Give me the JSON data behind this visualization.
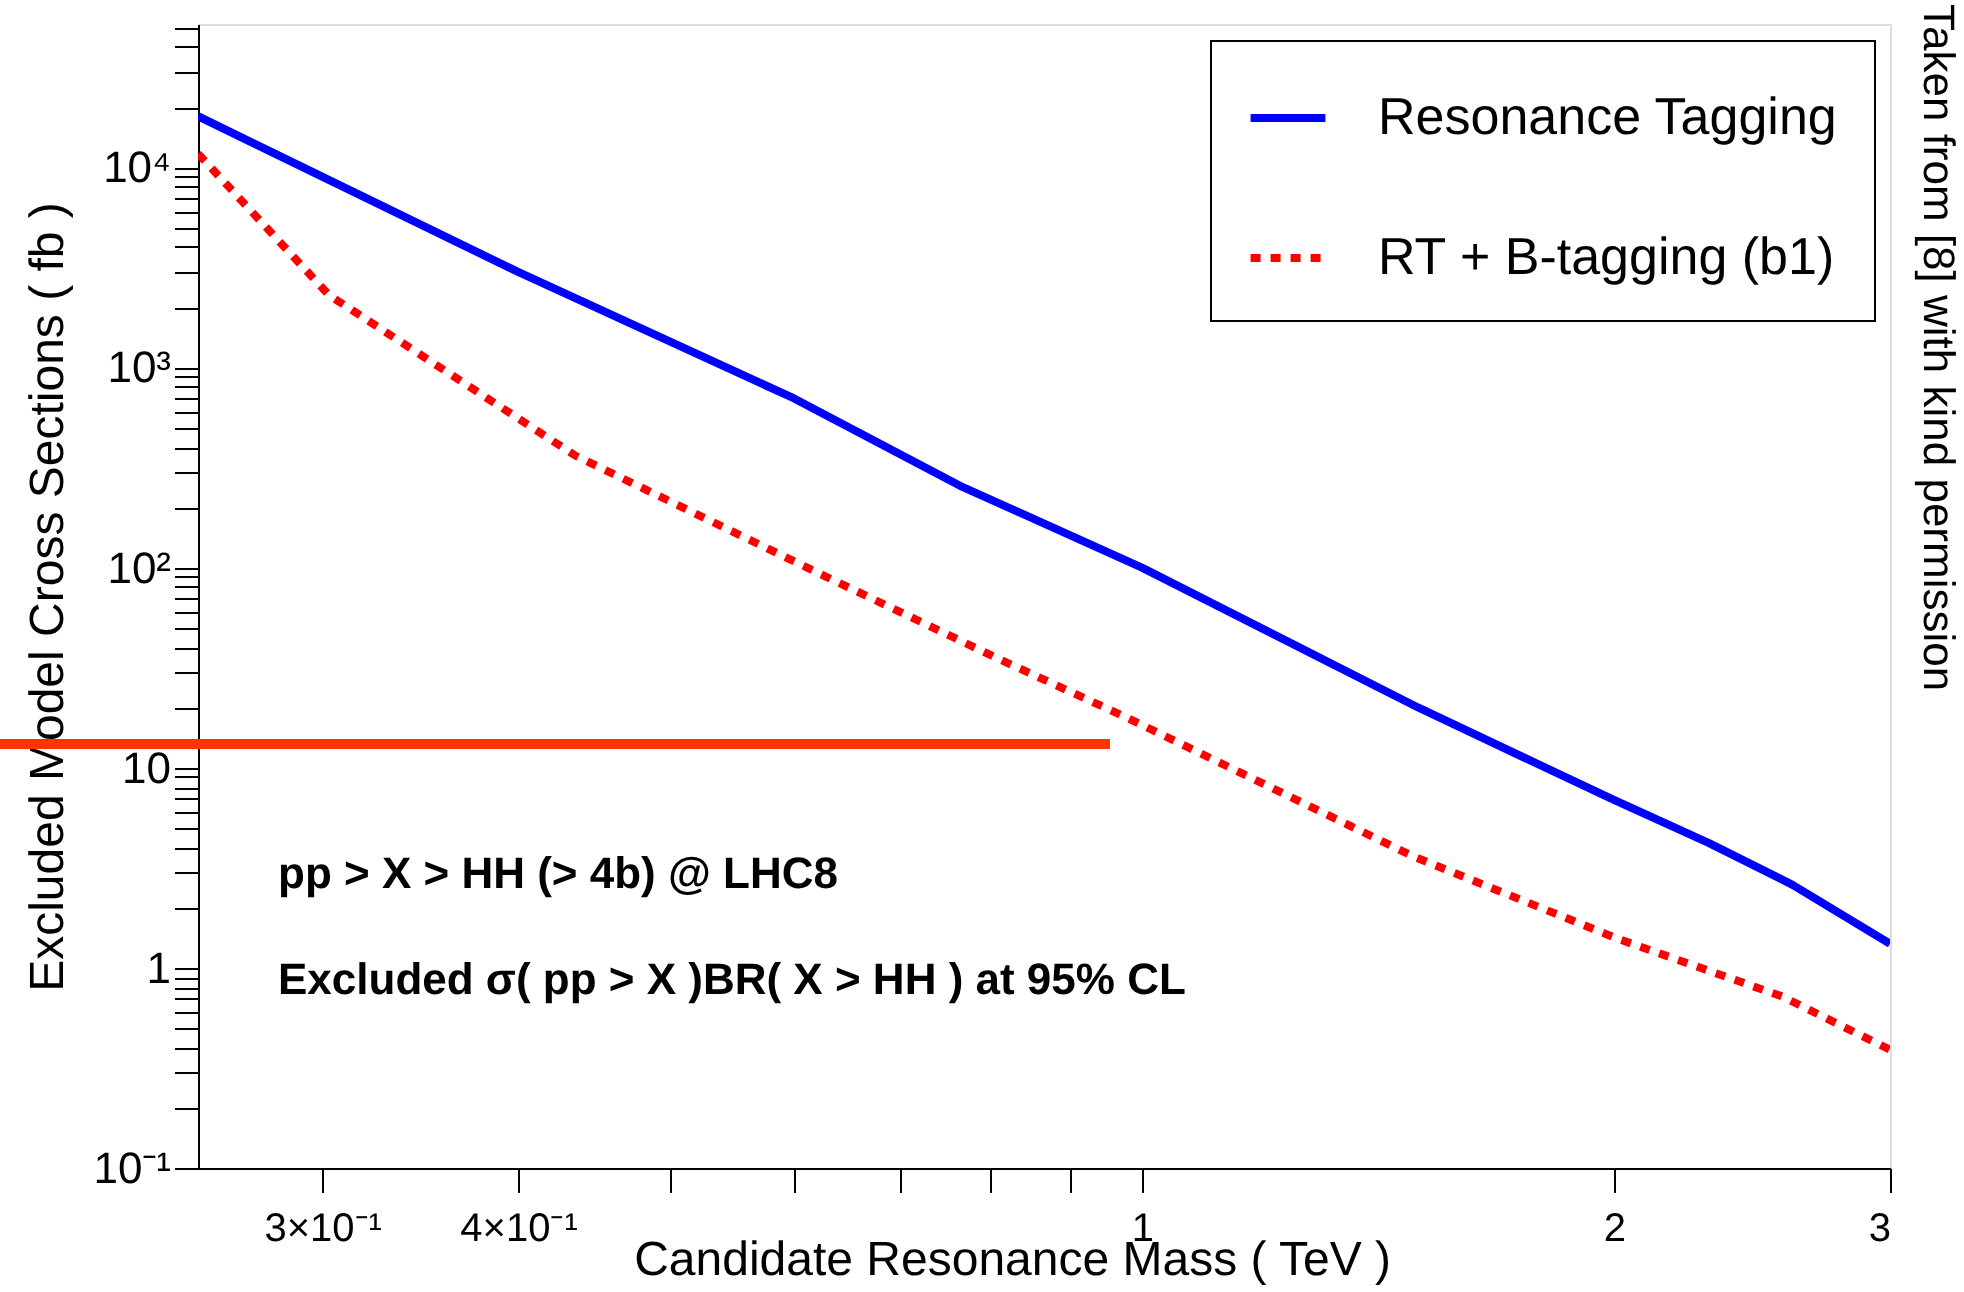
{
  "chart_data": {
    "type": "line",
    "xlabel": "Candidate Resonance Mass ( TeV )",
    "ylabel": "Excluded Model Cross Sections ( fb )",
    "log": "xy",
    "grid": false,
    "legend": "top right",
    "xlim": [
      0.25,
      3
    ],
    "ylim": [
      0.1,
      52000
    ],
    "xticks": [
      {
        "value": 0.3,
        "label": "3×10⁻¹"
      },
      {
        "value": 0.4,
        "label": "4×10⁻¹"
      },
      {
        "value": 0.5,
        "label": null
      },
      {
        "value": 0.6,
        "label": null
      },
      {
        "value": 0.7,
        "label": null
      },
      {
        "value": 0.8,
        "label": null
      },
      {
        "value": 0.9,
        "label": null
      },
      1,
      2,
      3
    ],
    "yticks": [
      {
        "value": 0.1,
        "label": "10⁻¹"
      },
      {
        "value": 0.2,
        "label": null
      },
      {
        "value": 0.3,
        "label": null
      },
      {
        "value": 0.4,
        "label": null
      },
      {
        "value": 0.5,
        "label": null
      },
      {
        "value": 0.6,
        "label": null
      },
      {
        "value": 0.7,
        "label": null
      },
      {
        "value": 0.8,
        "label": null
      },
      {
        "value": 0.9,
        "label": null
      },
      1,
      {
        "value": 2,
        "label": null
      },
      {
        "value": 3,
        "label": null
      },
      {
        "value": 4,
        "label": null
      },
      {
        "value": 5,
        "label": null
      },
      {
        "value": 6,
        "label": null
      },
      {
        "value": 7,
        "label": null
      },
      {
        "value": 8,
        "label": null
      },
      {
        "value": 9,
        "label": null
      },
      10,
      {
        "value": 20,
        "label": null
      },
      {
        "value": 30,
        "label": null
      },
      {
        "value": 40,
        "label": null
      },
      {
        "value": 50,
        "label": null
      },
      {
        "value": 60,
        "label": null
      },
      {
        "value": 70,
        "label": null
      },
      {
        "value": 80,
        "label": null
      },
      {
        "value": 90,
        "label": null
      },
      {
        "value": 100,
        "label": "10²"
      },
      {
        "value": 200,
        "label": null
      },
      {
        "value": 300,
        "label": null
      },
      {
        "value": 400,
        "label": null
      },
      {
        "value": 500,
        "label": null
      },
      {
        "value": 600,
        "label": null
      },
      {
        "value": 700,
        "label": null
      },
      {
        "value": 800,
        "label": null
      },
      {
        "value": 900,
        "label": null
      },
      {
        "value": 1000,
        "label": "10³"
      },
      {
        "value": 2000,
        "label": null
      },
      {
        "value": 3000,
        "label": null
      },
      {
        "value": 4000,
        "label": null
      },
      {
        "value": 5000,
        "label": null
      },
      {
        "value": 6000,
        "label": null
      },
      {
        "value": 7000,
        "label": null
      },
      {
        "value": 8000,
        "label": null
      },
      {
        "value": 9000,
        "label": null
      },
      {
        "value": 10000,
        "label": "10⁴"
      },
      {
        "value": 20000,
        "label": null
      },
      {
        "value": 30000,
        "label": null
      },
      {
        "value": 40000,
        "label": null
      },
      {
        "value": 50000,
        "label": null
      }
    ],
    "series": [
      {
        "name": "Resonance Tagging",
        "color": "#0000ff",
        "line_style": "solid",
        "x": [
          0.25,
          0.4,
          0.6,
          0.765,
          1,
          1.5,
          2,
          2.3,
          2.6,
          3
        ],
        "values": [
          18000,
          3000,
          700,
          257,
          100,
          20,
          6.9,
          4.2,
          2.6,
          1.32
        ]
      },
      {
        "name": "RT + B-tagging (b1)",
        "color": "#ff0000",
        "line_style": "dotted",
        "x": [
          0.25,
          0.303,
          0.435,
          0.627,
          0.81,
          0.975,
          1.49,
          2.01,
          2.56,
          3
        ],
        "values": [
          11700,
          2300,
          363,
          91,
          35,
          18,
          3.6,
          1.4,
          0.72,
          0.39
        ]
      }
    ],
    "annotations": [
      "pp > X > HH (> 4b) @ LHC8",
      "Excluded σ( pp > X )BR( X > HH ) at 95% CL",
      "Taken from [8] with kind permission"
    ]
  }
}
